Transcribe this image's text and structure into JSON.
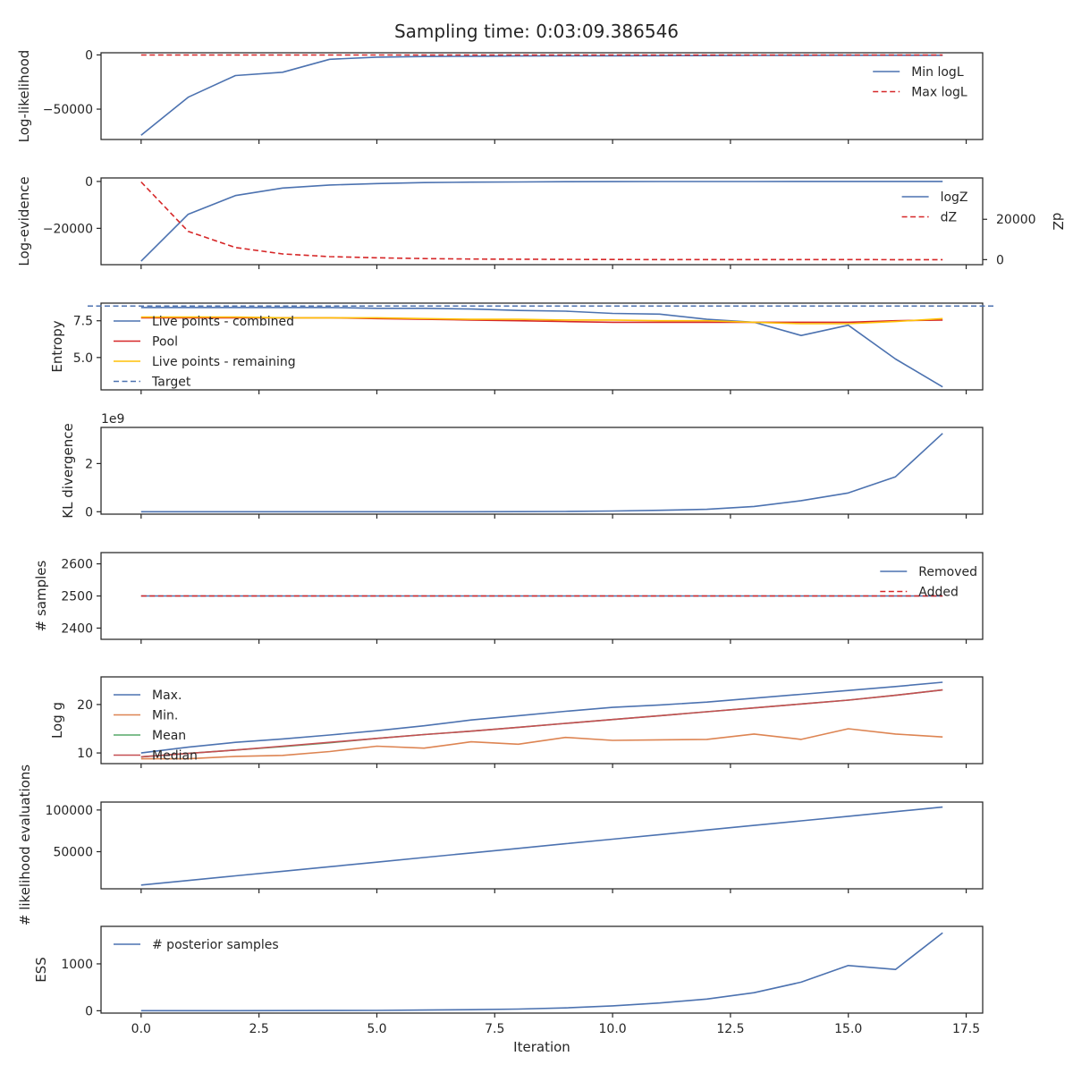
{
  "figure": {
    "title": "Sampling time: 0:03:09.386546"
  },
  "colors": {
    "blue": "#4c72b0",
    "orange": "#dd8452",
    "green": "#55a868",
    "red": "#c44e52",
    "bright_red": "#d62728",
    "gold": "#ffc107"
  },
  "chart_data": [
    {
      "id": "loglikelihood",
      "type": "line",
      "ylabel": "Log-likelihood",
      "ylim": [
        -78000,
        2000
      ],
      "yticks": [
        {
          "value": 0,
          "label": "0"
        },
        {
          "value": -50000,
          "label": "−50000"
        }
      ],
      "legend": "top-right",
      "series": [
        {
          "name": "Min logL",
          "color": "#4c72b0",
          "dash": "solid",
          "values": [
            -74000,
            -39000,
            -19000,
            -16000,
            -4000,
            -2000,
            -1500,
            -1200,
            -1000,
            -900,
            -800,
            -700,
            -600,
            -500,
            -400,
            -300,
            -300,
            -300
          ]
        },
        {
          "name": "Max logL",
          "color": "#d62728",
          "dash": "dashed",
          "values": [
            -100,
            -100,
            -100,
            -100,
            -100,
            -100,
            -100,
            -100,
            -100,
            -100,
            -100,
            -100,
            -100,
            -100,
            -100,
            -100,
            -100,
            -100
          ]
        }
      ]
    },
    {
      "id": "logevidence",
      "type": "line",
      "ylabel": "Log-evidence",
      "ylabel_right": "dZ",
      "ylim": [
        -35500,
        1500
      ],
      "yticks": [
        {
          "value": 0,
          "label": "0"
        },
        {
          "value": -20000,
          "label": "−20000"
        }
      ],
      "ylim_right": [
        -2500,
        40500
      ],
      "yticks_right": [
        {
          "value": 20000,
          "label": "20000"
        },
        {
          "value": 0,
          "label": "0"
        }
      ],
      "legend": "top-right",
      "series": [
        {
          "name": "logZ",
          "color": "#4c72b0",
          "dash": "solid",
          "axis": "left",
          "values": [
            -34000,
            -14000,
            -6000,
            -2800,
            -1500,
            -900,
            -500,
            -300,
            -200,
            -100,
            -50,
            -30,
            -20,
            -10,
            -5,
            -3,
            -2,
            -1
          ]
        },
        {
          "name": "dZ",
          "color": "#d62728",
          "dash": "dashed",
          "axis": "right",
          "values": [
            38500,
            14000,
            6000,
            2800,
            1500,
            900,
            500,
            300,
            200,
            120,
            60,
            40,
            25,
            15,
            10,
            6,
            3,
            2
          ]
        }
      ]
    },
    {
      "id": "entropy",
      "type": "line",
      "ylabel": "Entropy",
      "ylim": [
        2.8,
        8.7
      ],
      "yticks": [
        {
          "value": 7.5,
          "label": "7.5"
        },
        {
          "value": 5.0,
          "label": "5.0"
        }
      ],
      "legend": "top-left",
      "target": 8.5,
      "series": [
        {
          "name": "Live points - combined",
          "color": "#4c72b0",
          "dash": "solid",
          "values": [
            8.4,
            8.4,
            8.4,
            8.4,
            8.4,
            8.35,
            8.35,
            8.3,
            8.2,
            8.15,
            8.0,
            7.95,
            7.6,
            7.4,
            6.5,
            7.2,
            4.9,
            3.0
          ]
        },
        {
          "name": "Pool",
          "color": "#d62728",
          "dash": "solid",
          "values": [
            7.7,
            7.7,
            7.7,
            7.7,
            7.7,
            7.65,
            7.6,
            7.55,
            7.5,
            7.45,
            7.4,
            7.4,
            7.4,
            7.4,
            7.4,
            7.4,
            7.5,
            7.55
          ]
        },
        {
          "name": "Live points - remaining",
          "color": "#ffc107",
          "dash": "solid",
          "values": [
            7.75,
            7.75,
            7.75,
            7.7,
            7.7,
            7.7,
            7.65,
            7.6,
            7.6,
            7.55,
            7.55,
            7.5,
            7.5,
            7.4,
            7.3,
            7.3,
            7.45,
            7.65
          ]
        },
        {
          "name": "Target",
          "color": "#4c72b0",
          "dash": "dashed",
          "values": []
        }
      ]
    },
    {
      "id": "kl",
      "type": "line",
      "ylabel": "KL divergence",
      "offset_text": "1e9",
      "ylim": [
        -0.1,
        3.5
      ],
      "yticks": [
        {
          "value": 2,
          "label": "2"
        },
        {
          "value": 0,
          "label": "0"
        }
      ],
      "series": [
        {
          "name": "",
          "color": "#4c72b0",
          "dash": "solid",
          "values": [
            0.0,
            0.0,
            0.0,
            0.0,
            0.0,
            0.0,
            0.0,
            0.0,
            0.005,
            0.01,
            0.03,
            0.06,
            0.1,
            0.22,
            0.46,
            0.78,
            1.45,
            3.25
          ]
        }
      ]
    },
    {
      "id": "samples",
      "type": "line",
      "ylabel": "# samples",
      "ylim": [
        2365,
        2635
      ],
      "yticks": [
        {
          "value": 2600,
          "label": "2600"
        },
        {
          "value": 2500,
          "label": "2500"
        },
        {
          "value": 2400,
          "label": "2400"
        }
      ],
      "legend": "top-right",
      "series": [
        {
          "name": "Removed",
          "color": "#4c72b0",
          "dash": "solid",
          "values": [
            2500,
            2500,
            2500,
            2500,
            2500,
            2500,
            2500,
            2500,
            2500,
            2500,
            2500,
            2500,
            2500,
            2500,
            2500,
            2500,
            2500,
            2500
          ]
        },
        {
          "name": "Added",
          "color": "#d62728",
          "dash": "dashed",
          "values": [
            2500,
            2500,
            2500,
            2500,
            2500,
            2500,
            2500,
            2500,
            2500,
            2500,
            2500,
            2500,
            2500,
            2500,
            2500,
            2500,
            2500,
            2500
          ]
        }
      ]
    },
    {
      "id": "logg",
      "type": "line",
      "ylabel": "Log g",
      "ylim": [
        7.8,
        25.7
      ],
      "yticks": [
        {
          "value": 20,
          "label": "20"
        },
        {
          "value": 10,
          "label": "10"
        }
      ],
      "legend": "top-left",
      "series": [
        {
          "name": "Max.",
          "color": "#4c72b0",
          "dash": "solid",
          "values": [
            10.0,
            11.2,
            12.2,
            12.9,
            13.7,
            14.6,
            15.6,
            16.8,
            17.7,
            18.6,
            19.4,
            19.9,
            20.5,
            21.3,
            22.1,
            22.9,
            23.7,
            24.6
          ]
        },
        {
          "name": "Min.",
          "color": "#dd8452",
          "dash": "solid",
          "values": [
            8.8,
            8.8,
            9.3,
            9.5,
            10.3,
            11.4,
            11.0,
            12.3,
            11.8,
            13.2,
            12.6,
            12.7,
            12.8,
            13.9,
            12.8,
            15.0,
            13.9,
            13.3
          ]
        },
        {
          "name": "Mean",
          "color": "#55a868",
          "dash": "solid",
          "values": [
            9.2,
            9.9,
            10.6,
            11.3,
            12.1,
            13.0,
            13.8,
            14.5,
            15.3,
            16.1,
            16.9,
            17.7,
            18.5,
            19.3,
            20.1,
            20.9,
            21.9,
            23.0
          ]
        },
        {
          "name": "Median",
          "color": "#c44e52",
          "dash": "solid",
          "values": [
            9.2,
            9.9,
            10.6,
            11.4,
            12.2,
            13.0,
            13.8,
            14.5,
            15.3,
            16.1,
            16.9,
            17.7,
            18.5,
            19.3,
            20.1,
            20.9,
            21.9,
            23.0
          ]
        }
      ]
    },
    {
      "id": "likelihood_evals",
      "type": "line",
      "ylabel": "# likelihood evaluations",
      "ylim": [
        5500,
        109500
      ],
      "yticks": [
        {
          "value": 100000,
          "label": "100000"
        },
        {
          "value": 50000,
          "label": "50000"
        }
      ],
      "series": [
        {
          "name": "",
          "color": "#4c72b0",
          "dash": "solid",
          "values": [
            10000,
            15500,
            21000,
            26500,
            32000,
            37500,
            43000,
            48500,
            54000,
            59500,
            65000,
            70500,
            76000,
            81500,
            87000,
            92500,
            98000,
            103500
          ]
        }
      ]
    },
    {
      "id": "ess",
      "type": "line",
      "ylabel": "ESS",
      "xlabel": "Iteration",
      "ylim": [
        -50,
        1800
      ],
      "yticks": [
        {
          "value": 1000,
          "label": "1000"
        },
        {
          "value": 0,
          "label": "0"
        }
      ],
      "xticks": [
        {
          "value": 0,
          "label": "0.0"
        },
        {
          "value": 2.5,
          "label": "2.5"
        },
        {
          "value": 5,
          "label": "5.0"
        },
        {
          "value": 7.5,
          "label": "7.5"
        },
        {
          "value": 10,
          "label": "10.0"
        },
        {
          "value": 12.5,
          "label": "12.5"
        },
        {
          "value": 15,
          "label": "15.0"
        },
        {
          "value": 17.5,
          "label": "17.5"
        }
      ],
      "legend": "top-left",
      "series": [
        {
          "name": "# posterior samples",
          "color": "#4c72b0",
          "dash": "solid",
          "values": [
            2,
            2,
            2,
            3,
            5,
            8,
            14,
            22,
            35,
            60,
            105,
            165,
            250,
            385,
            610,
            965,
            880,
            1660
          ]
        }
      ]
    }
  ],
  "x_domain": [
    -0.85,
    17.85
  ],
  "iterations": [
    0,
    1,
    2,
    3,
    4,
    5,
    6,
    7,
    8,
    9,
    10,
    11,
    12,
    13,
    14,
    15,
    16,
    17
  ]
}
